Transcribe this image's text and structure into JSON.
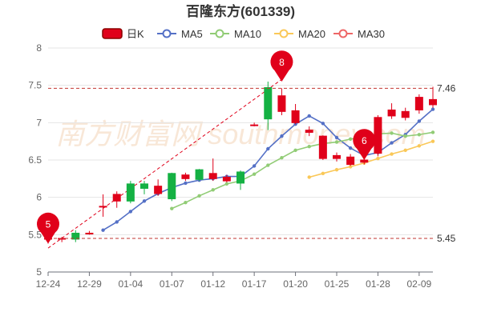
{
  "chart_data": {
    "type": "candlestick",
    "title": "百隆东方(601339)",
    "legend": [
      {
        "label": "日K",
        "color": "#e0001a",
        "kind": "candle"
      },
      {
        "label": "MA5",
        "color": "#5470c6",
        "kind": "line"
      },
      {
        "label": "MA10",
        "color": "#91cc75",
        "kind": "line"
      },
      {
        "label": "MA20",
        "color": "#fac858",
        "kind": "line"
      },
      {
        "label": "MA30",
        "color": "#ee6666",
        "kind": "line"
      }
    ],
    "legend_position": "top-center",
    "y_axis": {
      "min": 5,
      "max": 8,
      "ticks": [
        "5",
        "5.5",
        "6",
        "6.5",
        "7",
        "7.5",
        "8"
      ]
    },
    "x_tick_labels": [
      "12-24",
      "12-29",
      "01-04",
      "01-07",
      "01-12",
      "01-17",
      "01-20",
      "01-25",
      "01-28",
      "02-09"
    ],
    "x_tick_positions": [
      0,
      3,
      6,
      9,
      12,
      15,
      18,
      21,
      24,
      27
    ],
    "candles": [
      {
        "open": 5.45,
        "close": 5.45,
        "low": 5.38,
        "high": 5.48
      },
      {
        "open": 5.45,
        "close": 5.45,
        "low": 5.4,
        "high": 5.47
      },
      {
        "open": 5.52,
        "close": 5.44,
        "low": 5.4,
        "high": 5.56
      },
      {
        "open": 5.52,
        "close": 5.52,
        "low": 5.5,
        "high": 5.55
      },
      {
        "open": 5.88,
        "close": 5.88,
        "low": 5.74,
        "high": 6.04
      },
      {
        "open": 5.95,
        "close": 6.04,
        "low": 5.86,
        "high": 6.08
      },
      {
        "open": 6.18,
        "close": 5.95,
        "low": 5.92,
        "high": 6.22
      },
      {
        "open": 6.18,
        "close": 6.12,
        "low": 6.04,
        "high": 6.22
      },
      {
        "open": 6.05,
        "close": 6.15,
        "low": 6.02,
        "high": 6.24
      },
      {
        "open": 6.32,
        "close": 5.98,
        "low": 5.95,
        "high": 6.33
      },
      {
        "open": 6.25,
        "close": 6.3,
        "low": 6.22,
        "high": 6.33
      },
      {
        "open": 6.37,
        "close": 6.24,
        "low": 6.22,
        "high": 6.38
      },
      {
        "open": 6.25,
        "close": 6.32,
        "low": 6.22,
        "high": 6.52
      },
      {
        "open": 6.22,
        "close": 6.27,
        "low": 6.2,
        "high": 6.3
      },
      {
        "open": 6.34,
        "close": 6.19,
        "low": 6.1,
        "high": 6.36
      },
      {
        "open": 6.97,
        "close": 6.97,
        "low": 6.95,
        "high": 7.0
      },
      {
        "open": 7.47,
        "close": 7.05,
        "low": 6.9,
        "high": 7.55
      },
      {
        "open": 7.15,
        "close": 7.36,
        "low": 7.1,
        "high": 7.46
      },
      {
        "open": 7.0,
        "close": 7.16,
        "low": 6.98,
        "high": 7.25
      },
      {
        "open": 6.87,
        "close": 6.9,
        "low": 6.82,
        "high": 6.95
      },
      {
        "open": 6.52,
        "close": 6.82,
        "low": 6.5,
        "high": 6.83
      },
      {
        "open": 6.52,
        "close": 6.56,
        "low": 6.48,
        "high": 6.6
      },
      {
        "open": 6.44,
        "close": 6.54,
        "low": 6.42,
        "high": 6.58
      },
      {
        "open": 6.47,
        "close": 6.5,
        "low": 6.44,
        "high": 6.56
      },
      {
        "open": 6.59,
        "close": 7.07,
        "low": 6.55,
        "high": 7.1
      },
      {
        "open": 7.09,
        "close": 7.17,
        "low": 7.05,
        "high": 7.26
      },
      {
        "open": 7.07,
        "close": 7.15,
        "low": 7.03,
        "high": 7.2
      },
      {
        "open": 7.17,
        "close": 7.34,
        "low": 7.12,
        "high": 7.38
      },
      {
        "open": 7.24,
        "close": 7.31,
        "low": 7.2,
        "high": 7.48
      }
    ],
    "ma5": [
      null,
      null,
      null,
      null,
      5.56,
      5.67,
      5.81,
      5.95,
      6.05,
      6.13,
      6.19,
      6.23,
      6.25,
      6.28,
      6.28,
      6.42,
      6.65,
      6.82,
      6.98,
      7.09,
      6.99,
      6.8,
      6.66,
      6.56,
      6.6,
      6.73,
      6.84,
      7.02,
      7.18
    ],
    "ma10": [
      null,
      null,
      null,
      null,
      null,
      null,
      null,
      null,
      null,
      5.85,
      5.93,
      6.02,
      6.1,
      6.18,
      6.22,
      6.31,
      6.43,
      6.53,
      6.63,
      6.68,
      6.72,
      6.74,
      6.78,
      6.81,
      6.85,
      6.86,
      6.82,
      6.84,
      6.87
    ],
    "ma20": [
      null,
      null,
      null,
      null,
      null,
      null,
      null,
      null,
      null,
      null,
      null,
      null,
      null,
      null,
      null,
      null,
      null,
      null,
      null,
      6.27,
      6.32,
      6.37,
      6.41,
      6.46,
      6.52,
      6.58,
      6.63,
      6.69,
      6.75
    ],
    "ma30": [],
    "reference_lines": [
      {
        "value": 7.46,
        "label": "7.46"
      },
      {
        "value": 5.45,
        "label": "5.45"
      }
    ],
    "markers": [
      {
        "index": 0,
        "value": 5.38,
        "label": "5"
      },
      {
        "index": 17,
        "value": 7.55,
        "label": "8"
      },
      {
        "index": 23,
        "value": 6.5,
        "label": "6"
      }
    ],
    "trend_line": {
      "from_index": 0,
      "from_value": 5.32,
      "to_index": 17,
      "to_value": 7.58
    },
    "watermark": "南方财富网 southmoney.com"
  }
}
